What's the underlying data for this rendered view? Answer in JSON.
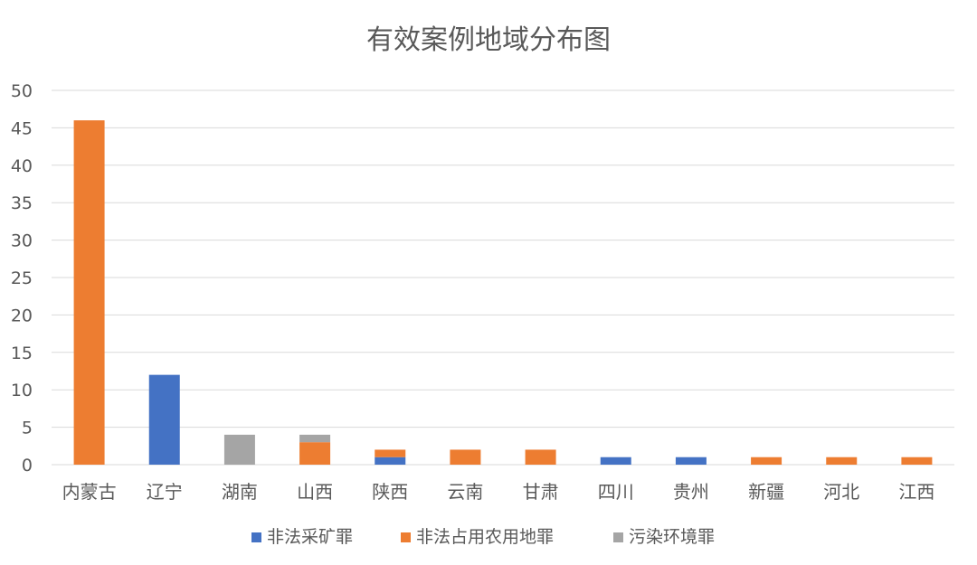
{
  "chart_data": {
    "type": "bar",
    "stacked": true,
    "title": "有效案例地域分布图",
    "xlabel": "",
    "ylabel": "",
    "ylim": [
      0,
      50
    ],
    "y_ticks": [
      0,
      5,
      10,
      15,
      20,
      25,
      30,
      35,
      40,
      45,
      50
    ],
    "grid": true,
    "legend_position": "bottom",
    "categories": [
      "内蒙古",
      "辽宁",
      "湖南",
      "山西",
      "陕西",
      "云南",
      "甘肃",
      "四川",
      "贵州",
      "新疆",
      "河北",
      "江西"
    ],
    "series": [
      {
        "name": "非法采矿罪",
        "color": "#4472c4",
        "values": [
          0,
          12,
          0,
          0,
          1,
          0,
          0,
          1,
          1,
          0,
          0,
          0
        ]
      },
      {
        "name": "非法占用农用地罪",
        "color": "#ed7d31",
        "values": [
          46,
          0,
          0,
          3,
          1,
          2,
          2,
          0,
          0,
          1,
          1,
          1
        ]
      },
      {
        "name": "污染环境罪",
        "color": "#a5a5a5",
        "values": [
          0,
          0,
          4,
          1,
          0,
          0,
          0,
          0,
          0,
          0,
          0,
          0
        ]
      }
    ]
  }
}
